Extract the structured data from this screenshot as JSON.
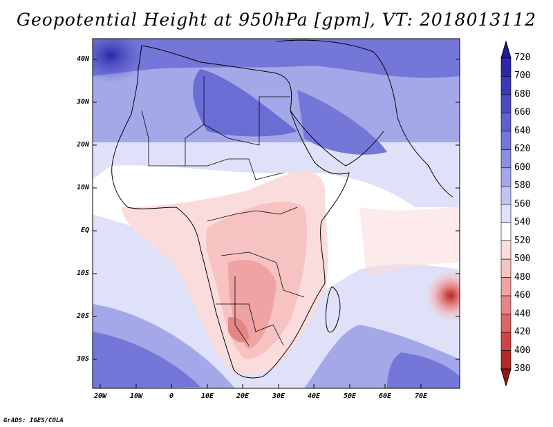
{
  "title": "Geopotential Height at 950hPa [gpm], VT: 2018013112",
  "credit": "GrADS: IGES/COLA",
  "map": {
    "lon_range": [
      -23,
      80
    ],
    "lat_range": [
      -37,
      45
    ],
    "lat_ticks": [
      "40N",
      "30N",
      "20N",
      "10N",
      "EQ",
      "10S",
      "20S",
      "30S"
    ],
    "lon_ticks": [
      "20W",
      "10W",
      "0",
      "10E",
      "20E",
      "30E",
      "40E",
      "50E",
      "60E",
      "70E"
    ]
  },
  "colorbar": {
    "labels": [
      "720",
      "700",
      "680",
      "660",
      "640",
      "620",
      "600",
      "580",
      "560",
      "540",
      "520",
      "500",
      "480",
      "460",
      "440",
      "420",
      "400",
      "380"
    ],
    "colors": [
      "#1f1a96",
      "#2b27a8",
      "#3b38b8",
      "#4b4bc4",
      "#5e60cf",
      "#7477d8",
      "#8b8fe0",
      "#a4a8e8",
      "#c1c4f0",
      "#dfe1f8",
      "#ffffff",
      "#fbdcdc",
      "#f6c2c2",
      "#efa3a3",
      "#e58686",
      "#dc6464",
      "#cd4444",
      "#b52828",
      "#9a1414"
    ]
  },
  "colors": {
    "ocean_north": "#8b8fe0",
    "land_north": "#6a6dd4",
    "africa_south": "#efa3a3",
    "neutral": "#ffffff"
  }
}
